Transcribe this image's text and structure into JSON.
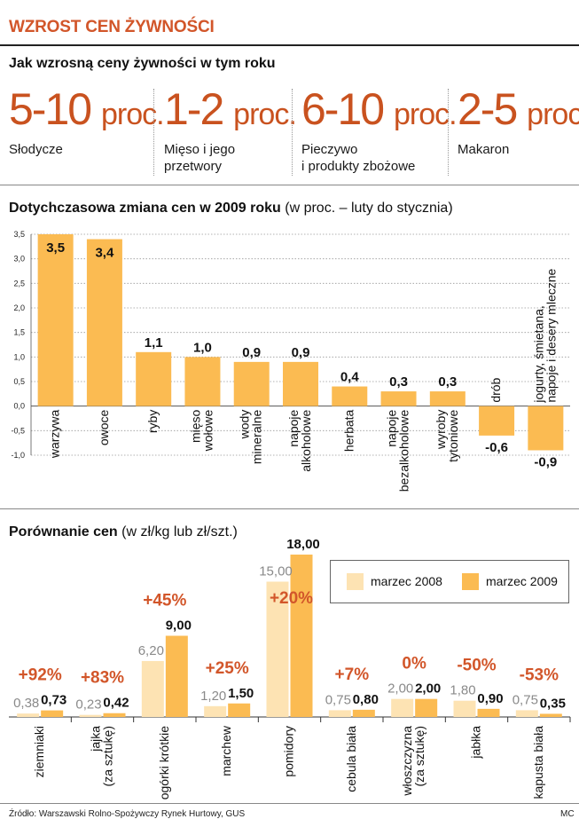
{
  "title": "WZROST CEN ŻYWNOŚCI",
  "forecast": {
    "heading": "Jak wzrosną ceny żywności w tym roku",
    "items": [
      {
        "range": "5-10",
        "unit": "proc.",
        "label_lines": [
          "Słodycze"
        ]
      },
      {
        "range": "1-2",
        "unit": "proc.",
        "label_lines": [
          "Mięso i jego",
          "przetwory"
        ]
      },
      {
        "range": "6-10",
        "unit": "proc.",
        "label_lines": [
          "Pieczywo",
          "i produkty zbożowe"
        ]
      },
      {
        "range": "2-5",
        "unit": "proc.",
        "label_lines": [
          "Makaron"
        ]
      }
    ]
  },
  "colors": {
    "accent": "#d2562a",
    "bar_2009": "#fbbb52",
    "bar_2008": "#fde3b3",
    "grid": "#999999",
    "text": "#1a1a1a"
  },
  "chart_data": [
    {
      "type": "bar",
      "title": "Dotychczasowa zmiana cen w 2009 roku",
      "subtitle": "(w proc. – luty do stycznia)",
      "ylim": [
        -1.0,
        3.5
      ],
      "yticks": [
        "3,5",
        "3,0",
        "2,5",
        "2,0",
        "1,5",
        "1,0",
        "0,5",
        "0,0",
        "-0,5",
        "-1,0"
      ],
      "ytick_values": [
        3.5,
        3.0,
        2.5,
        2.0,
        1.5,
        1.0,
        0.5,
        0.0,
        -0.5,
        -1.0
      ],
      "categories": [
        {
          "lines": [
            "warzywa"
          ]
        },
        {
          "lines": [
            "owoce"
          ]
        },
        {
          "lines": [
            "ryby"
          ]
        },
        {
          "lines": [
            "mięso",
            "wołowe"
          ]
        },
        {
          "lines": [
            "wody",
            "mineralne"
          ]
        },
        {
          "lines": [
            "napoje",
            "alkoholowe"
          ]
        },
        {
          "lines": [
            "herbata"
          ]
        },
        {
          "lines": [
            "napoje",
            "bezalkoholowe"
          ]
        },
        {
          "lines": [
            "wyroby",
            "tytoniowe"
          ]
        },
        {
          "lines": [
            "drób"
          ]
        },
        {
          "lines": [
            "jogurty, śmietana,",
            "napoje i desery mleczne"
          ]
        }
      ],
      "values": [
        3.5,
        3.4,
        1.1,
        1.0,
        0.9,
        0.9,
        0.4,
        0.3,
        0.3,
        -0.6,
        -0.9
      ],
      "value_labels": [
        "3,5",
        "3,4",
        "1,1",
        "1,0",
        "0,9",
        "0,9",
        "0,4",
        "0,3",
        "0,3",
        "-0,6",
        "-0,9"
      ]
    },
    {
      "type": "bar",
      "title": "Porównanie cen",
      "subtitle": "(w zł/kg lub zł/szt.)",
      "ymax": 18,
      "legend": [
        "marzec 2008",
        "marzec 2009"
      ],
      "categories": [
        {
          "lines": [
            "ziemniaki"
          ]
        },
        {
          "lines": [
            "jajka",
            "(za sztukę)"
          ]
        },
        {
          "lines": [
            "ogórki krótkie"
          ]
        },
        {
          "lines": [
            "marchew"
          ]
        },
        {
          "lines": [
            "pomidory"
          ]
        },
        {
          "lines": [
            "cebula biała"
          ]
        },
        {
          "lines": [
            "włoszczyzna",
            "(za sztukę)"
          ]
        },
        {
          "lines": [
            "jabłka"
          ]
        },
        {
          "lines": [
            "kapusta biała"
          ]
        }
      ],
      "series": [
        {
          "name": "marzec 2008",
          "values": [
            0.38,
            0.23,
            6.2,
            1.2,
            15.0,
            0.75,
            2.0,
            1.8,
            0.75
          ],
          "labels": [
            "0,38",
            "0,23",
            "6,20",
            "1,20",
            "15,00",
            "0,75",
            "2,00",
            "1,80",
            "0,75"
          ]
        },
        {
          "name": "marzec 2009",
          "values": [
            0.73,
            0.42,
            9.0,
            1.5,
            18.0,
            0.8,
            2.0,
            0.9,
            0.35
          ],
          "labels": [
            "0,73",
            "0,42",
            "9,00",
            "1,50",
            "18,00",
            "0,80",
            "2,00",
            "0,90",
            "0,35"
          ]
        }
      ],
      "changes": [
        "+92%",
        "+83%",
        "+45%",
        "+25%",
        "+20%",
        "+7%",
        "0%",
        "-50%",
        "-53%"
      ]
    }
  ],
  "footer": {
    "source": "Źródło: Warszawski Rolno-Spożywczy Rynek Hurtowy, GUS",
    "credit": "MC"
  }
}
